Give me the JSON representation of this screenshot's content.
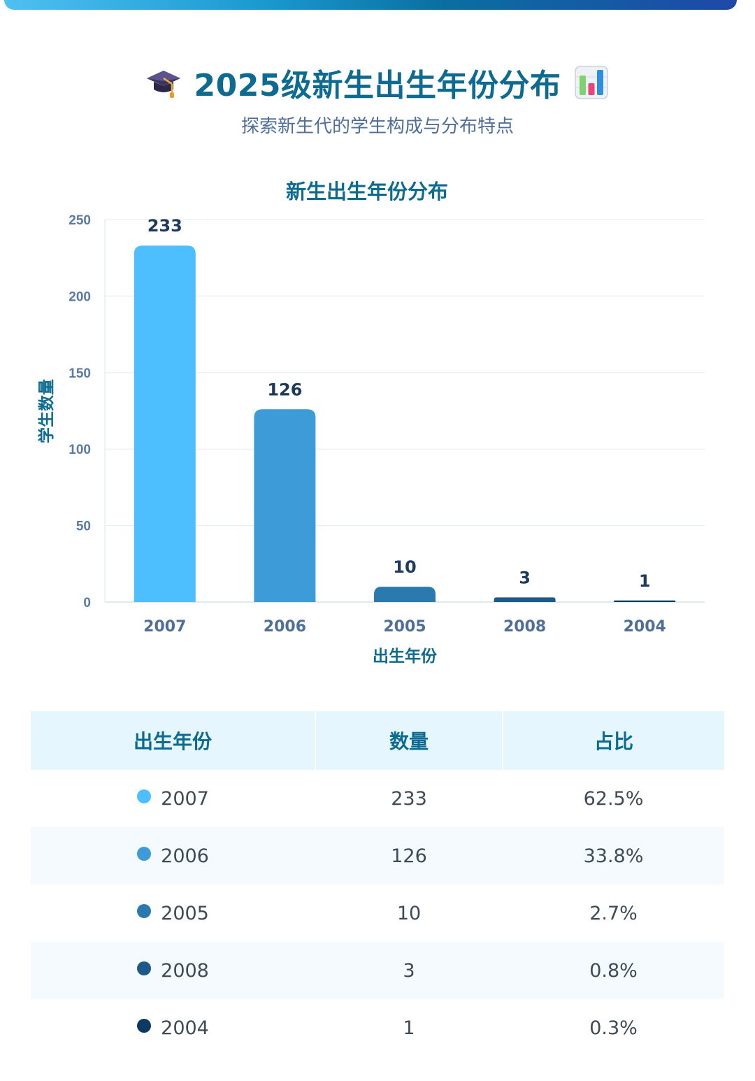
{
  "header": {
    "title": "2025级新生出生年份分布",
    "subtitle": "探索新生代的学生构成与分布特点",
    "left_icon": "graduation-cap-icon",
    "right_icon": "bar-chart-icon"
  },
  "chart_data": {
    "type": "bar",
    "title": "新生出生年份分布",
    "xlabel": "出生年份",
    "ylabel": "学生数量",
    "categories": [
      "2007",
      "2006",
      "2005",
      "2008",
      "2004"
    ],
    "values": [
      233,
      126,
      10,
      3,
      1
    ],
    "data_labels": [
      "233",
      "126",
      "10",
      "3",
      "1"
    ],
    "colors": [
      "#4dbfff",
      "#3d9cd8",
      "#2a7ab0",
      "#1d5a8a",
      "#0d3a62"
    ],
    "ylim": [
      0,
      250
    ],
    "yticks": [
      "0",
      "50",
      "100",
      "150",
      "200",
      "250"
    ],
    "grid": true
  },
  "table": {
    "headers": [
      "出生年份",
      "数量",
      "占比"
    ],
    "rows": [
      {
        "year": "2007",
        "count": "233",
        "percent": "62.5%",
        "color": "#4dbfff"
      },
      {
        "year": "2006",
        "count": "126",
        "percent": "33.8%",
        "color": "#3d9cd8"
      },
      {
        "year": "2005",
        "count": "10",
        "percent": "2.7%",
        "color": "#2a7ab0"
      },
      {
        "year": "2008",
        "count": "3",
        "percent": "0.8%",
        "color": "#1d5a8a"
      },
      {
        "year": "2004",
        "count": "1",
        "percent": "0.3%",
        "color": "#0d3a62"
      }
    ]
  }
}
